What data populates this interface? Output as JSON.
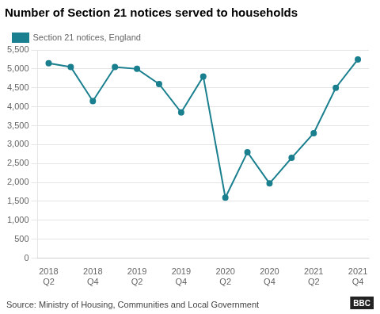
{
  "chart_data": {
    "type": "line",
    "title": "Number of Section 21 notices served to households",
    "annotations": [
      "Source: Ministry of Housing, Communities and Local Government",
      "BBC"
    ],
    "categories": [
      "2018\nQ2",
      null,
      "2018\nQ4",
      null,
      "2019\nQ2",
      null,
      "2019\nQ4",
      null,
      "2020\nQ2",
      null,
      "2020\nQ4",
      null,
      "2021\nQ2",
      null,
      "2021\nQ4"
    ],
    "series": [
      {
        "name": "Section 21 notices, England",
        "color": "#1a7f8e",
        "marker": "circle",
        "values": [
          5150,
          5050,
          4150,
          5050,
          5000,
          4600,
          3850,
          4800,
          1600,
          2800,
          1975,
          2650,
          3300,
          4500,
          5250
        ]
      }
    ],
    "ylim": [
      0,
      5500
    ],
    "yticks": [
      0,
      500,
      {
        "value": 1000,
        "label": "1,000"
      },
      {
        "value": 1500,
        "label": "1,500"
      },
      {
        "value": 2000,
        "label": "2,000"
      },
      {
        "value": 2500,
        "label": "2,500"
      },
      {
        "value": 3000,
        "label": "3,000"
      },
      {
        "value": 3500,
        "label": "3,500"
      },
      {
        "value": 4000,
        "label": "4,000"
      },
      {
        "value": 4500,
        "label": "4,500"
      },
      {
        "value": 5000,
        "label": "5,000"
      },
      {
        "value": 5500,
        "label": "5,500"
      }
    ],
    "grid": true,
    "legend": "upper left"
  }
}
